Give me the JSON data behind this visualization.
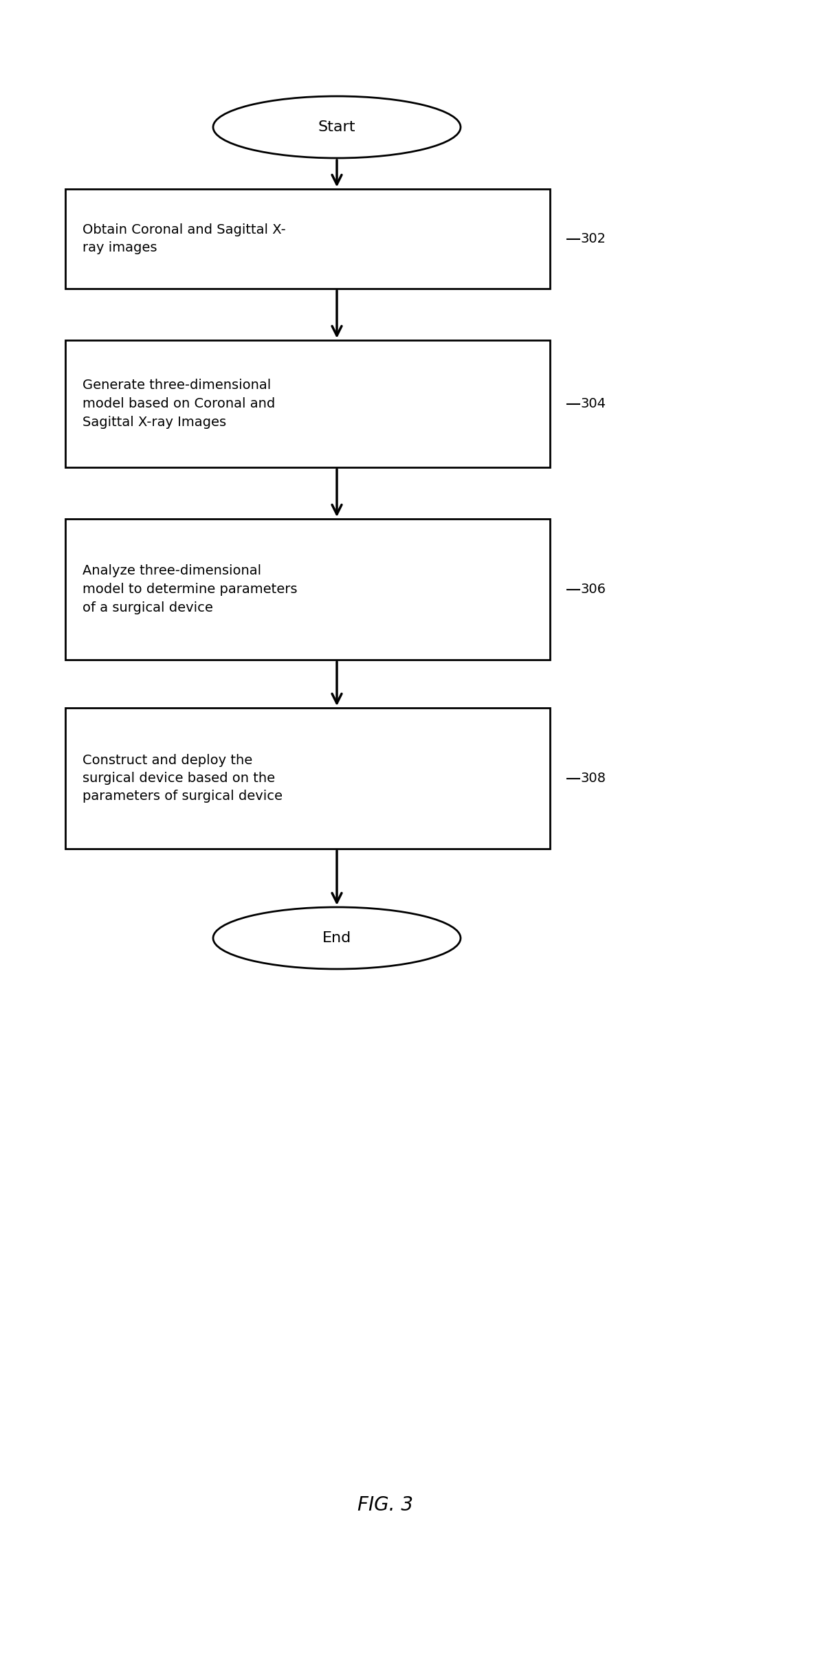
{
  "title": "FIG. 3",
  "background_color": "#ffffff",
  "start_label": "Start",
  "end_label": "End",
  "boxes": [
    {
      "label": "Obtain Coronal and Sagittal X-\nray images",
      "ref": "302"
    },
    {
      "label": "Generate three-dimensional\nmodel based on Coronal and\nSagittal X-ray Images",
      "ref": "304"
    },
    {
      "label": "Analyze three-dimensional\nmodel to determine parameters\nof a surgical device",
      "ref": "306"
    },
    {
      "label": "Construct and deploy the\nsurgical device based on the\nparameters of surgical device",
      "ref": "308"
    }
  ],
  "text_color": "#000000",
  "box_edge_color": "#000000",
  "box_face_color": "#ffffff",
  "arrow_color": "#000000",
  "ref_fontsize": 14,
  "label_fontsize": 14,
  "title_fontsize": 20,
  "fig_width": 12.19,
  "fig_height": 24.3,
  "dpi": 100
}
